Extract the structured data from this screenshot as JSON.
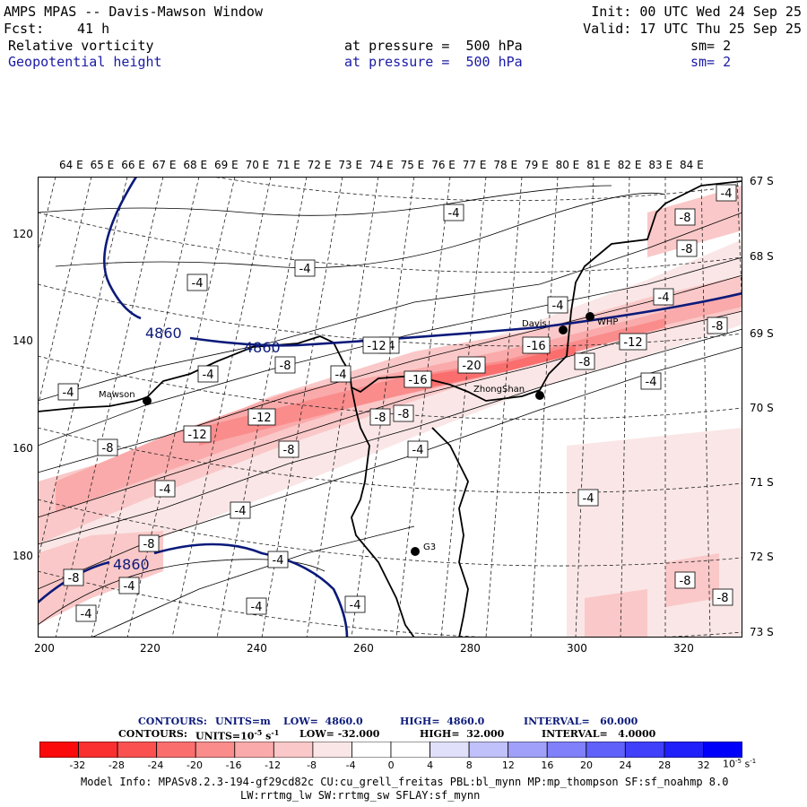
{
  "header": {
    "title": "AMPS MPAS -- Davis-Mawson Window",
    "fcst_label": "Fcst:",
    "fcst_value": "41 h",
    "init": "Init: 00 UTC Wed 24 Sep 25",
    "valid": "Valid: 17 UTC Thu 25 Sep 25",
    "field1": {
      "name": "Relative vorticity",
      "pressure": "at pressure =  500 hPa",
      "sm": "sm= 2"
    },
    "field2": {
      "name": "Geopotential height",
      "pressure": "at pressure =  500 hPa",
      "sm": "sm= 2"
    }
  },
  "map": {
    "lon_labels": [
      "64 E",
      "65 E",
      "66 E",
      "67 E",
      "68 E",
      "69 E",
      "70 E",
      "71 E",
      "72 E",
      "73 E",
      "74 E",
      "75 E",
      "76 E",
      "77 E",
      "78 E",
      "79 E",
      "80 E",
      "81 E",
      "82 E",
      "83 E",
      "84 E"
    ],
    "lat_labels": [
      "67 S",
      "68 S",
      "69 S",
      "70 S",
      "71 S",
      "72 S",
      "73 S"
    ],
    "x_ticks": [
      "200",
      "220",
      "240",
      "260",
      "280",
      "300",
      "320"
    ],
    "y_ticks": [
      "120",
      "140",
      "160",
      "180"
    ],
    "stations": [
      "Mawson",
      "Davis",
      "ZhongShan",
      "G3",
      "WHP"
    ],
    "height_labels": [
      "4860",
      "4860",
      "4860"
    ],
    "vort_labels": [
      "-4",
      "-4",
      "-4",
      "-8",
      "-8",
      "-4",
      "-4",
      "-8",
      "-4",
      "-4",
      "-4",
      "-16",
      "-20",
      "-16",
      "-12",
      "-8",
      "-4",
      "-4",
      "-12",
      "-8",
      "-4",
      "-8",
      "-12",
      "-8",
      "-4",
      "-4",
      "-8",
      "-8",
      "-4",
      "-4",
      "-4",
      "-4",
      "-4",
      "-4",
      "-8",
      "-8",
      "-4",
      "-8",
      "-12",
      "-8"
    ]
  },
  "legend": {
    "line1": {
      "contours": "CONTOURS:",
      "units": "UNITS=m",
      "low": "LOW=  4860.0",
      "high": "HIGH=  4860.0",
      "interval": "INTERVAL=   60.000"
    },
    "line2": {
      "contours": "CONTOURS:",
      "units": "UNITS=10",
      "exp": "-5",
      "units_tail": " s",
      "exp2": "-1",
      "low": "LOW= -32.000",
      "high": "HIGH=  32.000",
      "interval": "INTERVAL=   4.0000"
    },
    "colorbar_labels": [
      "-32",
      "-28",
      "-24",
      "-20",
      "-16",
      "-12",
      "-8",
      "-4",
      "0",
      "4",
      "8",
      "12",
      "16",
      "20",
      "24",
      "28",
      "32"
    ],
    "colorbar_colors": [
      "#fa0a0a",
      "#fa3030",
      "#fa5050",
      "#fa6e6e",
      "#fa8c8c",
      "#faaaaa",
      "#fac8c8",
      "#fae6e6",
      "#ffffff",
      "#ffffff",
      "#e0e0fa",
      "#c0c0fa",
      "#a0a0fa",
      "#8080fa",
      "#6060fa",
      "#4040fa",
      "#2020fa",
      "#0000fa"
    ],
    "units": "10",
    "units_exp": "-5",
    "units_tail": " s",
    "units_exp2": "-1"
  },
  "footer": {
    "line1": "Model Info: MPASv8.2.3-194-gf29cd82c CU:cu_grell_freitas PBL:bl_mynn MP:mp_thompson SF:sf_noahmp 8.0",
    "line2": "LW:rrtmg_lw SW:rrtmg_sw SFLAY:sf_mynn"
  }
}
